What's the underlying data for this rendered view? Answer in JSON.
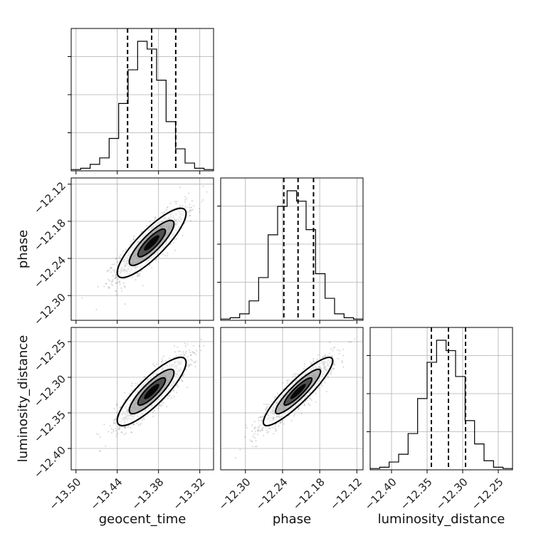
{
  "chart_data": {
    "type": "corner",
    "parameters": [
      {
        "name": "geocent_time",
        "ticks": [
          -13.5,
          -13.44,
          -13.38,
          -13.32
        ],
        "tick_labels": [
          "−13.50",
          "−13.44",
          "−13.38",
          "−13.32"
        ],
        "range": [
          -13.507,
          -13.3
        ],
        "quantiles": [
          -13.425,
          -13.39,
          -13.355
        ]
      },
      {
        "name": "phase",
        "ticks": [
          -12.3,
          -12.24,
          -12.18,
          -12.12
        ],
        "tick_labels": [
          "−12.30",
          "−12.24",
          "−12.18",
          "−12.12"
        ],
        "range": [
          -12.34,
          -12.11
        ],
        "quantiles": [
          -12.238,
          -12.215,
          -12.19
        ]
      },
      {
        "name": "luminosity_distance",
        "ticks": [
          -12.4,
          -12.35,
          -12.3,
          -12.25
        ],
        "tick_labels": [
          "−12.40",
          "−12.35",
          "−12.30",
          "−12.25"
        ],
        "range": [
          -12.43,
          -12.23
        ],
        "quantiles": [
          -12.344,
          -12.32,
          -12.296
        ]
      }
    ],
    "histograms": [
      {
        "param": "geocent_time",
        "counts": [
          1,
          2,
          5,
          10,
          25,
          52,
          78,
          100,
          94,
          70,
          38,
          17,
          6,
          2,
          1
        ]
      },
      {
        "param": "phase",
        "counts": [
          1,
          2,
          5,
          15,
          33,
          66,
          88,
          100,
          92,
          70,
          36,
          17,
          5,
          2,
          1
        ]
      },
      {
        "param": "luminosity_distance",
        "counts": [
          1,
          2,
          6,
          12,
          28,
          55,
          83,
          100,
          92,
          72,
          38,
          20,
          7,
          2,
          1
        ]
      }
    ],
    "pairs": [
      {
        "x": "geocent_time",
        "y": "phase",
        "center": [
          -13.39,
          -12.215
        ],
        "sd": [
          0.025,
          0.028
        ],
        "correlation": 0.85
      },
      {
        "x": "geocent_time",
        "y": "luminosity_distance",
        "center": [
          -13.39,
          -12.32
        ],
        "sd": [
          0.025,
          0.024
        ],
        "correlation": 0.85
      },
      {
        "x": "phase",
        "y": "luminosity_distance",
        "center": [
          -12.215,
          -12.32
        ],
        "sd": [
          0.028,
          0.024
        ],
        "correlation": 0.9
      }
    ],
    "grid": true,
    "title": "",
    "xlabels": [
      "geocent_time",
      "phase",
      "luminosity_distance"
    ],
    "ylabels": [
      "phase",
      "luminosity_distance"
    ],
    "colors": {
      "line": "#000000",
      "grid": "#b0b0b0",
      "points": "#000000",
      "quantile": "#000000"
    }
  }
}
